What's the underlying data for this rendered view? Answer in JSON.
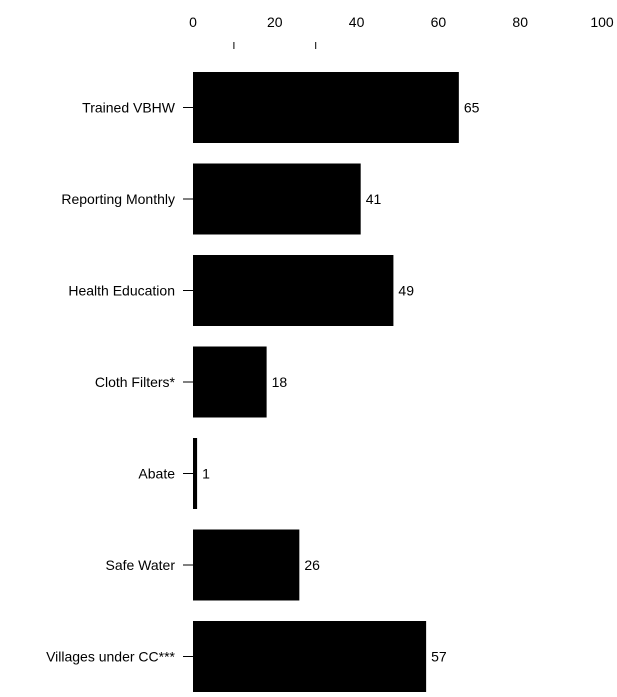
{
  "chart_data": {
    "type": "bar",
    "orientation": "horizontal",
    "categories": [
      "Trained VBHW",
      "Reporting Monthly",
      "Health Education",
      "Cloth Filters*",
      "Abate",
      "Safe Water",
      "Villages under CC***"
    ],
    "values": [
      65,
      41,
      49,
      18,
      1,
      26,
      57
    ],
    "data_labels": [
      "65",
      "41",
      "49",
      "18",
      "1",
      "26",
      "57"
    ],
    "x_ticks": [
      0,
      20,
      40,
      60,
      80,
      100
    ],
    "x_tick_labels": [
      "0",
      "20",
      "40",
      "60",
      "80",
      "100"
    ],
    "xlim": [
      0,
      100
    ],
    "x_axis_position": "top",
    "bar_color": "#000000",
    "grid": false,
    "legend": false
  }
}
